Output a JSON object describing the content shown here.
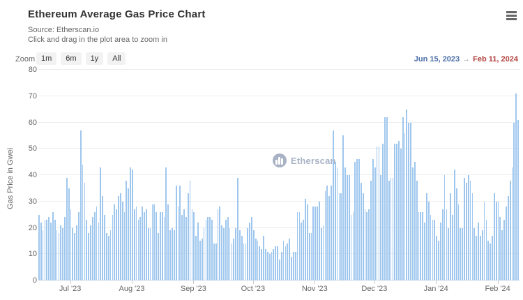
{
  "header": {
    "title": "Ethereum Average Gas Price Chart",
    "source_line": "Source: Etherscan.io",
    "hint_line": "Click and drag in the plot area to zoom in"
  },
  "toolbar": {
    "zoom_label": "Zoom",
    "buttons": [
      "1m",
      "6m",
      "1y",
      "All"
    ],
    "range_start": "Jun 15, 2023",
    "range_arrow": "→",
    "range_end": "Feb 11, 2024"
  },
  "watermark": {
    "text": "Etherscan",
    "icon": "etherscan-logo-icon"
  },
  "menu": {
    "icon": "hamburger-icon"
  },
  "colors": {
    "bar": "#9fc7ee",
    "range_start": "#4a6da7",
    "range_end": "#b0413e",
    "grid": "#ededed",
    "watermark": "#9aa6bb"
  },
  "chart_data": {
    "type": "bar",
    "title": "Ethereum Average Gas Price Chart",
    "xlabel": "",
    "ylabel": "Gas Price in Gwei",
    "ylim": [
      0,
      80
    ],
    "yticks": [
      0,
      10,
      20,
      30,
      40,
      50,
      60,
      70,
      80
    ],
    "grid": true,
    "legend": false,
    "x_start_date": "Jun 15, 2023",
    "x_end_date": "Feb 11, 2024",
    "x_unit": "day",
    "x_month_ticks": [
      {
        "label": "Jul '23",
        "day": 16
      },
      {
        "label": "Aug '23",
        "day": 47
      },
      {
        "label": "Sep '23",
        "day": 78
      },
      {
        "label": "Oct '23",
        "day": 108
      },
      {
        "label": "Nov '23",
        "day": 139
      },
      {
        "label": "Dec '23",
        "day": 169
      },
      {
        "label": "Jan '24",
        "day": 200
      },
      {
        "label": "Feb '24",
        "day": 231
      }
    ],
    "values": [
      25,
      22,
      19,
      23,
      23,
      24,
      22,
      26,
      23,
      19,
      18,
      21,
      20,
      24,
      39,
      35,
      27,
      20,
      18,
      21,
      26,
      57,
      44,
      37,
      23,
      18,
      21,
      24,
      26,
      28,
      22,
      43,
      32,
      25,
      18,
      17,
      19,
      25,
      29,
      27,
      32,
      33,
      30,
      26,
      38,
      35,
      43,
      42,
      27,
      28,
      23,
      24,
      28,
      26,
      27,
      20,
      20,
      29,
      29,
      26,
      18,
      26,
      26,
      24,
      43,
      29,
      19,
      20,
      19,
      36,
      28,
      36,
      25,
      27,
      24,
      33,
      38,
      27,
      26,
      17,
      22,
      15,
      16,
      20,
      23,
      24,
      24,
      23,
      14,
      14,
      27,
      28,
      21,
      20,
      23,
      24,
      20,
      14,
      16,
      20,
      39,
      19,
      17,
      14,
      14,
      20,
      22,
      24,
      19,
      16,
      15,
      13,
      12,
      17,
      12,
      11,
      10,
      11,
      12,
      13,
      13,
      8,
      11,
      15,
      13,
      14,
      16,
      9,
      11,
      11,
      26,
      26,
      22,
      23,
      31,
      29,
      18,
      18,
      28,
      28,
      28,
      30,
      20,
      21,
      34,
      36,
      32,
      36,
      57,
      45,
      43,
      33,
      33,
      55,
      43,
      40,
      40,
      25,
      26,
      45,
      46,
      46,
      37,
      33,
      27,
      26,
      27,
      38,
      46,
      43,
      51,
      51,
      40,
      52,
      62,
      62,
      38,
      39,
      39,
      52,
      52,
      53,
      50,
      62,
      56,
      65,
      60,
      60,
      43,
      45,
      38,
      26,
      26,
      26,
      22,
      33,
      30,
      25,
      23,
      23,
      17,
      15,
      22,
      27,
      40,
      27,
      20,
      33,
      25,
      42,
      35,
      29,
      20,
      20,
      39,
      37,
      40,
      38,
      33,
      20,
      17,
      22,
      17,
      19,
      30,
      23,
      15,
      14,
      17,
      33,
      30,
      30,
      24,
      19,
      23,
      28,
      32,
      38,
      43,
      60,
      71,
      61
    ]
  }
}
